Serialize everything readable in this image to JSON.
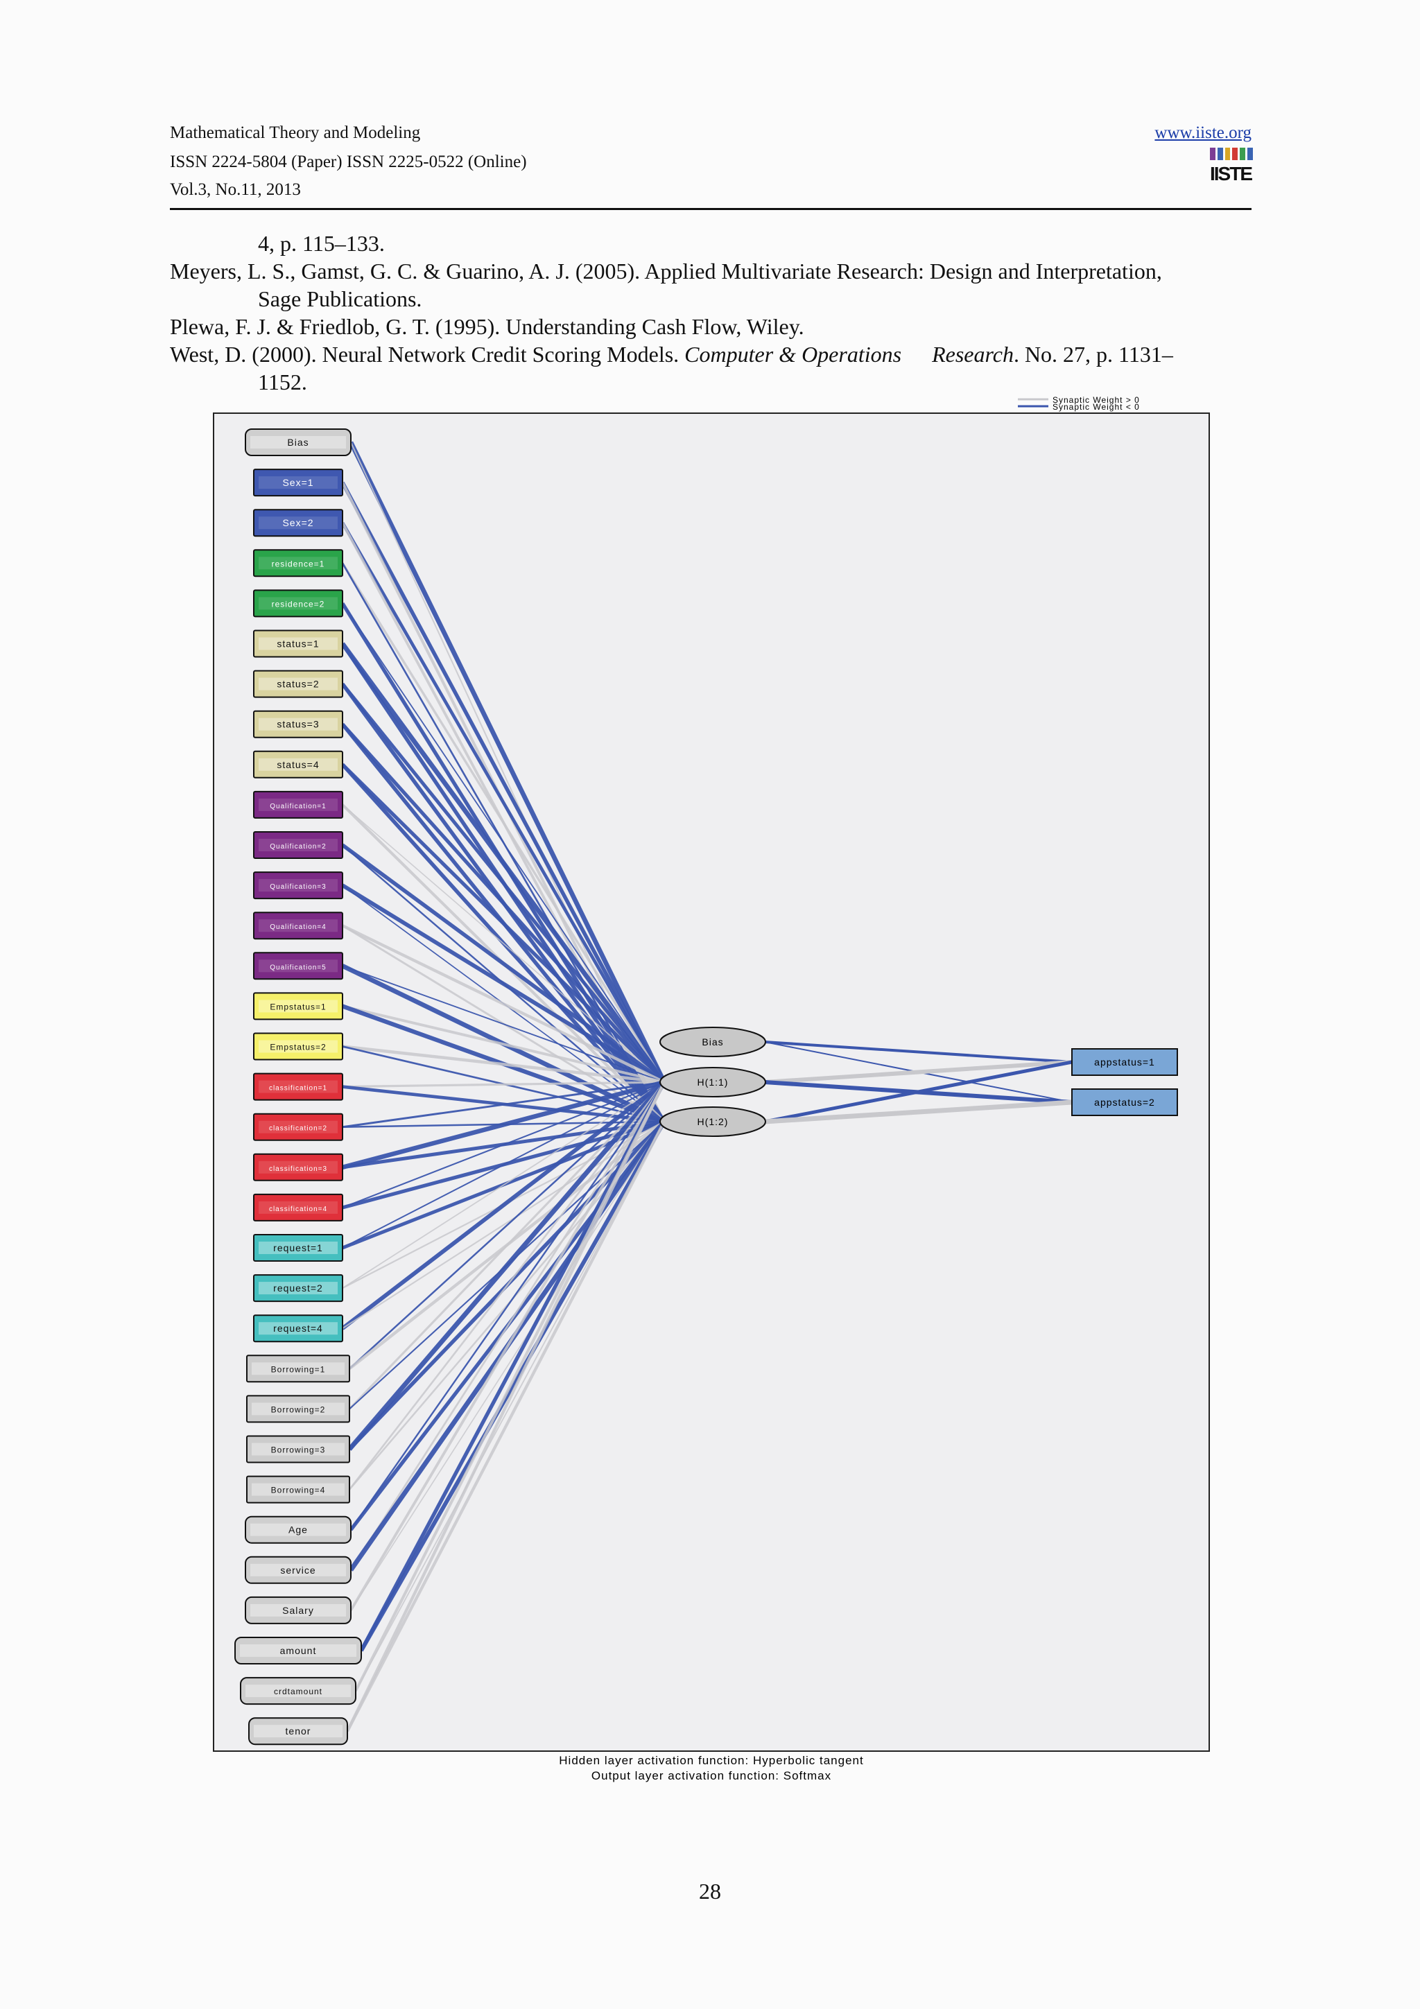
{
  "header": {
    "journal": "Mathematical Theory and Modeling",
    "issn": "ISSN 2224-5804 (Paper)    ISSN 2225-0522 (Online)",
    "volume": "Vol.3, No.11, 2013",
    "website": "www.iiste.org",
    "logo_text": "IISTE"
  },
  "references": [
    {
      "id": "ref-cont",
      "text": "4, p. 115–133."
    },
    {
      "id": "ref-meyers",
      "text_a": "Meyers, L. S., Gamst, G. C. & Guarino, A. J. (2005). Applied Multivariate Research: Design and Interpretation,",
      "text_b": "Sage Publications."
    },
    {
      "id": "ref-plewa",
      "text": "Plewa, F. J. & Friedlob, G. T. (1995). Understanding Cash Flow, Wiley."
    },
    {
      "id": "ref-west",
      "pre": "West, D. (2000). Neural Network Credit Scoring Models. ",
      "italic1": "Computer & Operations",
      "italic2": "Research",
      "post": ". No. 27, p. 1131–",
      "cont": "1152."
    }
  ],
  "figure": {
    "legend": [
      "Synaptic Weight > 0",
      "Synaptic Weight < 0"
    ],
    "legend_colors": {
      "positive": "#c8c8cc",
      "negative": "#3b56ad"
    },
    "input_nodes": [
      {
        "label": "Bias",
        "color": "#cfcfcf",
        "shape": "round"
      },
      {
        "label": "Sex=1",
        "color": "#3f58b0",
        "shape": "rect"
      },
      {
        "label": "Sex=2",
        "color": "#3f58b0",
        "shape": "rect"
      },
      {
        "label": "residence=1",
        "color": "#2aa44a",
        "shape": "rect"
      },
      {
        "label": "residence=2",
        "color": "#2aa44a",
        "shape": "rect"
      },
      {
        "label": "status=1",
        "color": "#d9d3a0",
        "shape": "rect"
      },
      {
        "label": "status=2",
        "color": "#d9d3a0",
        "shape": "rect"
      },
      {
        "label": "status=3",
        "color": "#d9d3a0",
        "shape": "rect"
      },
      {
        "label": "status=4",
        "color": "#d9d3a0",
        "shape": "rect"
      },
      {
        "label": "Qualification=1",
        "color": "#7b2a85",
        "shape": "rect"
      },
      {
        "label": "Qualification=2",
        "color": "#7b2a85",
        "shape": "rect"
      },
      {
        "label": "Qualification=3",
        "color": "#7b2a85",
        "shape": "rect"
      },
      {
        "label": "Qualification=4",
        "color": "#7b2a85",
        "shape": "rect"
      },
      {
        "label": "Qualification=5",
        "color": "#7b2a85",
        "shape": "rect"
      },
      {
        "label": "Empstatus=1",
        "color": "#f5f06a",
        "shape": "rect"
      },
      {
        "label": "Empstatus=2",
        "color": "#f5f06a",
        "shape": "rect"
      },
      {
        "label": "classification=1",
        "color": "#e0303a",
        "shape": "rect"
      },
      {
        "label": "classification=2",
        "color": "#e0303a",
        "shape": "rect"
      },
      {
        "label": "classification=3",
        "color": "#e0303a",
        "shape": "rect"
      },
      {
        "label": "classification=4",
        "color": "#e0303a",
        "shape": "rect"
      },
      {
        "label": "request=1",
        "color": "#45bfbf",
        "shape": "rect"
      },
      {
        "label": "request=2",
        "color": "#45bfbf",
        "shape": "rect"
      },
      {
        "label": "request=4",
        "color": "#45bfbf",
        "shape": "rect"
      },
      {
        "label": "Borrowing=1",
        "color": "#cccccc",
        "shape": "rect"
      },
      {
        "label": "Borrowing=2",
        "color": "#cccccc",
        "shape": "rect"
      },
      {
        "label": "Borrowing=3",
        "color": "#cccccc",
        "shape": "rect"
      },
      {
        "label": "Borrowing=4",
        "color": "#cccccc",
        "shape": "rect"
      },
      {
        "label": "Age",
        "color": "#cfcfcf",
        "shape": "round"
      },
      {
        "label": "service",
        "color": "#cfcfcf",
        "shape": "round"
      },
      {
        "label": "Salary",
        "color": "#cfcfcf",
        "shape": "round"
      },
      {
        "label": "amount",
        "color": "#cfcfcf",
        "shape": "round"
      },
      {
        "label": "crdtamount",
        "color": "#cfcfcf",
        "shape": "round"
      },
      {
        "label": "tenor",
        "color": "#cfcfcf",
        "shape": "round"
      }
    ],
    "hidden_nodes": [
      "Bias",
      "H(1:1)",
      "H(1:2)"
    ],
    "output_nodes": [
      "appstatus=1",
      "appstatus=2"
    ],
    "output_color": "#7aa6d6",
    "captions": [
      "Hidden layer activation function: Hyperbolic tangent",
      "Output layer activation function: Softmax"
    ]
  },
  "page_number": "28"
}
